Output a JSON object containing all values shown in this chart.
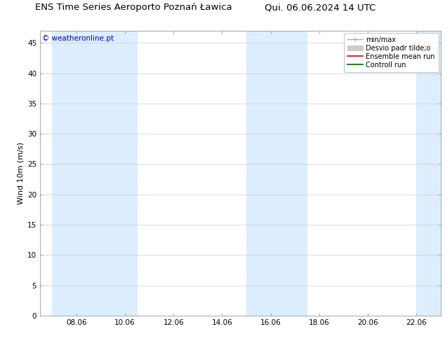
{
  "title_left": "ENS Time Series Aeroporto Poznań Ławica",
  "title_right": "Qui. 06.06.2024 14 UTC",
  "ylabel": "Wind 10m (m/s)",
  "watermark": "© weatheronline.pt",
  "xlim_left": 6.5,
  "xlim_right": 23.0,
  "ylim_bottom": 0,
  "ylim_top": 47,
  "yticks": [
    0,
    5,
    10,
    15,
    20,
    25,
    30,
    35,
    40,
    45
  ],
  "xtick_labels": [
    "08.06",
    "10.06",
    "12.06",
    "14.06",
    "16.06",
    "18.06",
    "20.06",
    "22.06"
  ],
  "xtick_positions": [
    8,
    10,
    12,
    14,
    16,
    18,
    20,
    22
  ],
  "shaded_bands": [
    {
      "x_start": 7.0,
      "x_end": 9.0
    },
    {
      "x_start": 9.0,
      "x_end": 10.5
    },
    {
      "x_start": 15.0,
      "x_end": 16.5
    },
    {
      "x_start": 16.5,
      "x_end": 17.5
    },
    {
      "x_start": 22.0,
      "x_end": 23.0
    }
  ],
  "shaded_color": "#ddeeff",
  "background_color": "#ffffff",
  "plot_bg_color": "#ffffff",
  "grid_color": "#cccccc",
  "watermark_color": "#0000cc",
  "title_fontsize": 9.5,
  "axis_fontsize": 8,
  "tick_fontsize": 7.5,
  "watermark_fontsize": 7.5,
  "legend_fontsize": 7
}
